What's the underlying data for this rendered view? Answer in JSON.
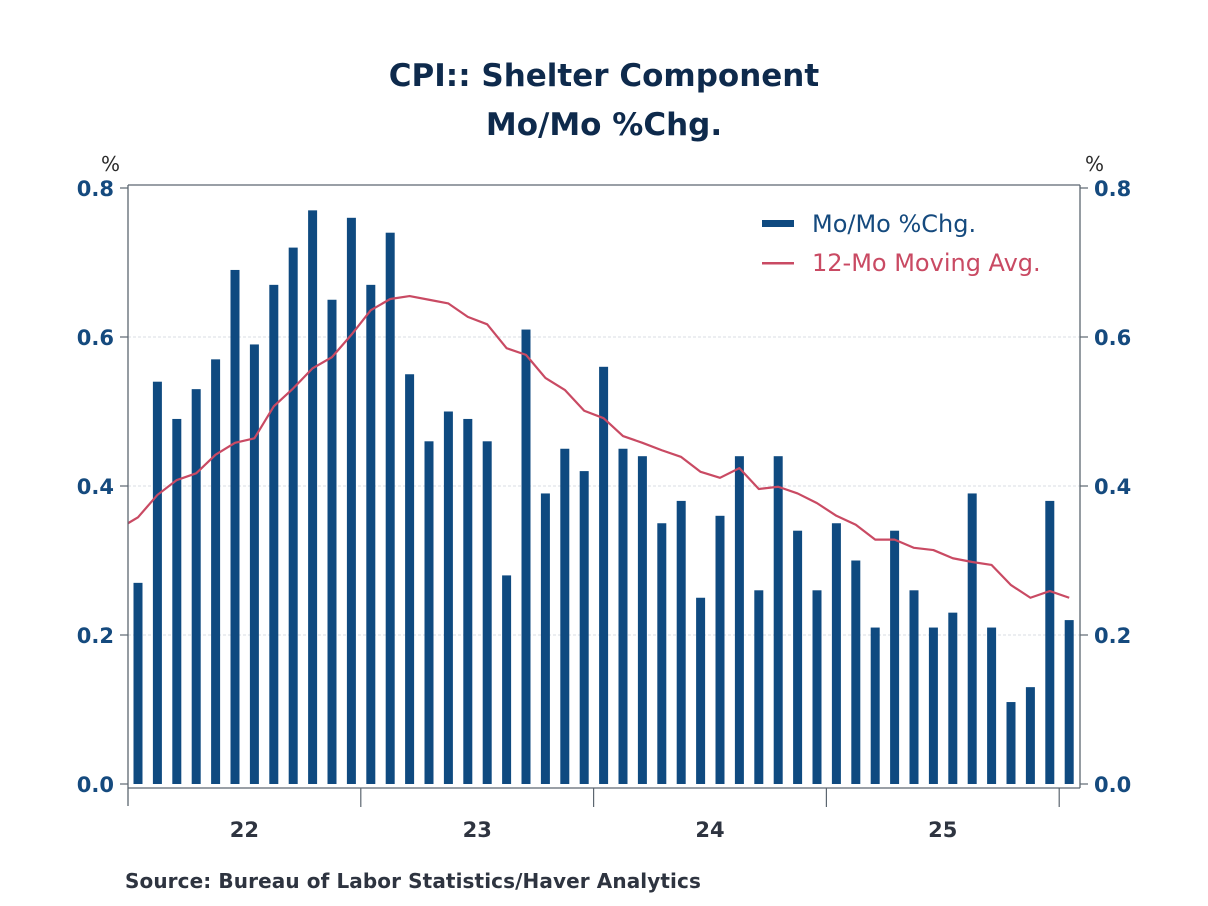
{
  "chart_data": {
    "type": "bar",
    "title": "CPI:: Shelter Component",
    "subtitle": "Mo/Mo %Chg.",
    "ylabel_left": "%",
    "ylabel_right": "%",
    "xlabel": "",
    "ylim": [
      0.0,
      0.8
    ],
    "yticks": [
      "0.0",
      "0.2",
      "0.4",
      "0.6",
      "0.8"
    ],
    "ytick_values": [
      0.0,
      0.2,
      0.4,
      0.6,
      0.8
    ],
    "grid": true,
    "legend_position": "top-right",
    "x_year_labels": [
      "22",
      "23",
      "24",
      "25"
    ],
    "months_per_year": 12,
    "series": [
      {
        "name": "Mo/Mo %Chg.",
        "type": "bar",
        "color": "#0f4a80",
        "values": [
          0.27,
          0.54,
          0.49,
          0.53,
          0.57,
          0.69,
          0.59,
          0.67,
          0.72,
          0.77,
          0.65,
          0.76,
          0.67,
          0.74,
          0.55,
          0.46,
          0.5,
          0.49,
          0.46,
          0.28,
          0.61,
          0.39,
          0.45,
          0.42,
          0.56,
          0.45,
          0.44,
          0.35,
          0.38,
          0.25,
          0.36,
          0.44,
          0.26,
          0.44,
          0.34,
          0.26,
          0.35,
          0.3,
          0.21,
          0.34,
          0.26,
          0.21,
          0.23,
          0.39,
          0.21,
          0.11,
          0.13,
          0.38,
          0.22
        ]
      },
      {
        "name": "12-Mo Moving Avg.",
        "type": "line",
        "color": "#c94a63",
        "start_value": 0.35,
        "values": [
          0.358,
          0.388,
          0.408,
          0.417,
          0.442,
          0.458,
          0.464,
          0.507,
          0.531,
          0.558,
          0.573,
          0.603,
          0.636,
          0.651,
          0.655,
          0.65,
          0.645,
          0.627,
          0.617,
          0.585,
          0.576,
          0.545,
          0.529,
          0.501,
          0.491,
          0.467,
          0.458,
          0.448,
          0.439,
          0.419,
          0.411,
          0.424,
          0.396,
          0.399,
          0.39,
          0.377,
          0.36,
          0.348,
          0.328,
          0.328,
          0.317,
          0.314,
          0.303,
          0.298,
          0.294,
          0.267,
          0.25,
          0.259,
          0.25
        ]
      }
    ]
  },
  "source": "Source:  Bureau of Labor Statistics/Haver Analytics"
}
